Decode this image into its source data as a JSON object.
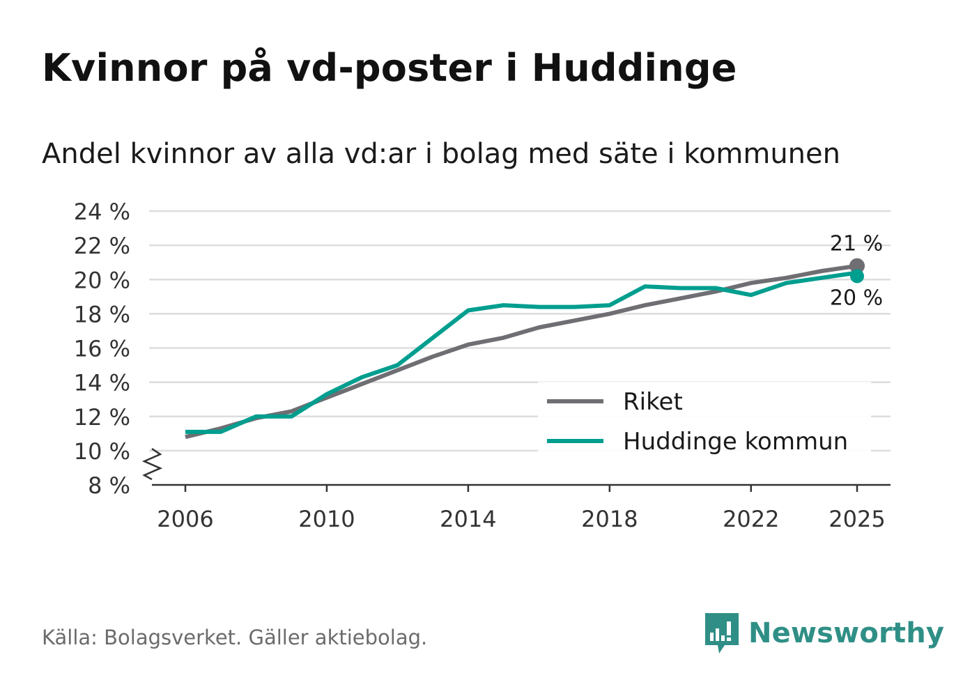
{
  "title": "Kvinnor på vd-poster i Huddinge",
  "subtitle": "Andel kvinnor av alla vd:ar i bolag med säte i kommunen",
  "source": "Källa: Bolagsverket. Gäller aktiebolag.",
  "brand": {
    "name": "Newsworthy",
    "icon": "newsworthy-logo-icon"
  },
  "colors": {
    "riket": "#6e6e73",
    "huddinge": "#009e8f",
    "grid": "#dddddd",
    "axis": "#333333"
  },
  "chart_data": {
    "type": "line",
    "title": "Kvinnor på vd-poster i Huddinge",
    "xlabel": "",
    "ylabel": "",
    "x": [
      2006,
      2007,
      2008,
      2009,
      2010,
      2011,
      2012,
      2013,
      2014,
      2015,
      2016,
      2017,
      2018,
      2019,
      2020,
      2021,
      2022,
      2023,
      2024,
      2025
    ],
    "series": [
      {
        "name": "Riket",
        "color": "#6e6e73",
        "values": [
          10.8,
          11.3,
          11.9,
          12.3,
          13.1,
          13.9,
          14.7,
          15.5,
          16.2,
          16.6,
          17.2,
          17.6,
          18.0,
          18.5,
          18.9,
          19.3,
          19.8,
          20.1,
          20.5,
          20.8
        ]
      },
      {
        "name": "Huddinge kommun",
        "color": "#009e8f",
        "values": [
          11.1,
          11.1,
          12.0,
          12.0,
          13.3,
          14.3,
          15.0,
          16.6,
          18.2,
          18.5,
          18.4,
          18.4,
          18.5,
          19.6,
          19.5,
          19.5,
          19.1,
          19.8,
          20.1,
          20.4
        ]
      }
    ],
    "xticks": [
      2006,
      2010,
      2014,
      2018,
      2022,
      2025
    ],
    "xtick_labels": [
      "2006",
      "2010",
      "2014",
      "2018",
      "2022",
      "2025"
    ],
    "yticks": [
      8,
      10,
      12,
      14,
      16,
      18,
      20,
      22,
      24
    ],
    "ytick_labels": [
      "8 %",
      "10 %",
      "12 %",
      "14 %",
      "16 %",
      "18 %",
      "20 %",
      "22 %",
      "24 %"
    ],
    "ylim": [
      8,
      24
    ],
    "xlim": [
      2006,
      2025
    ],
    "axis_break": true,
    "end_labels": [
      {
        "series": "Riket",
        "text": "21 %",
        "position": "above"
      },
      {
        "series": "Huddinge kommun",
        "text": "20 %",
        "position": "below"
      }
    ],
    "legend": {
      "placement": "bottom-right",
      "entries": [
        "Riket",
        "Huddinge kommun"
      ]
    },
    "grid": true
  }
}
